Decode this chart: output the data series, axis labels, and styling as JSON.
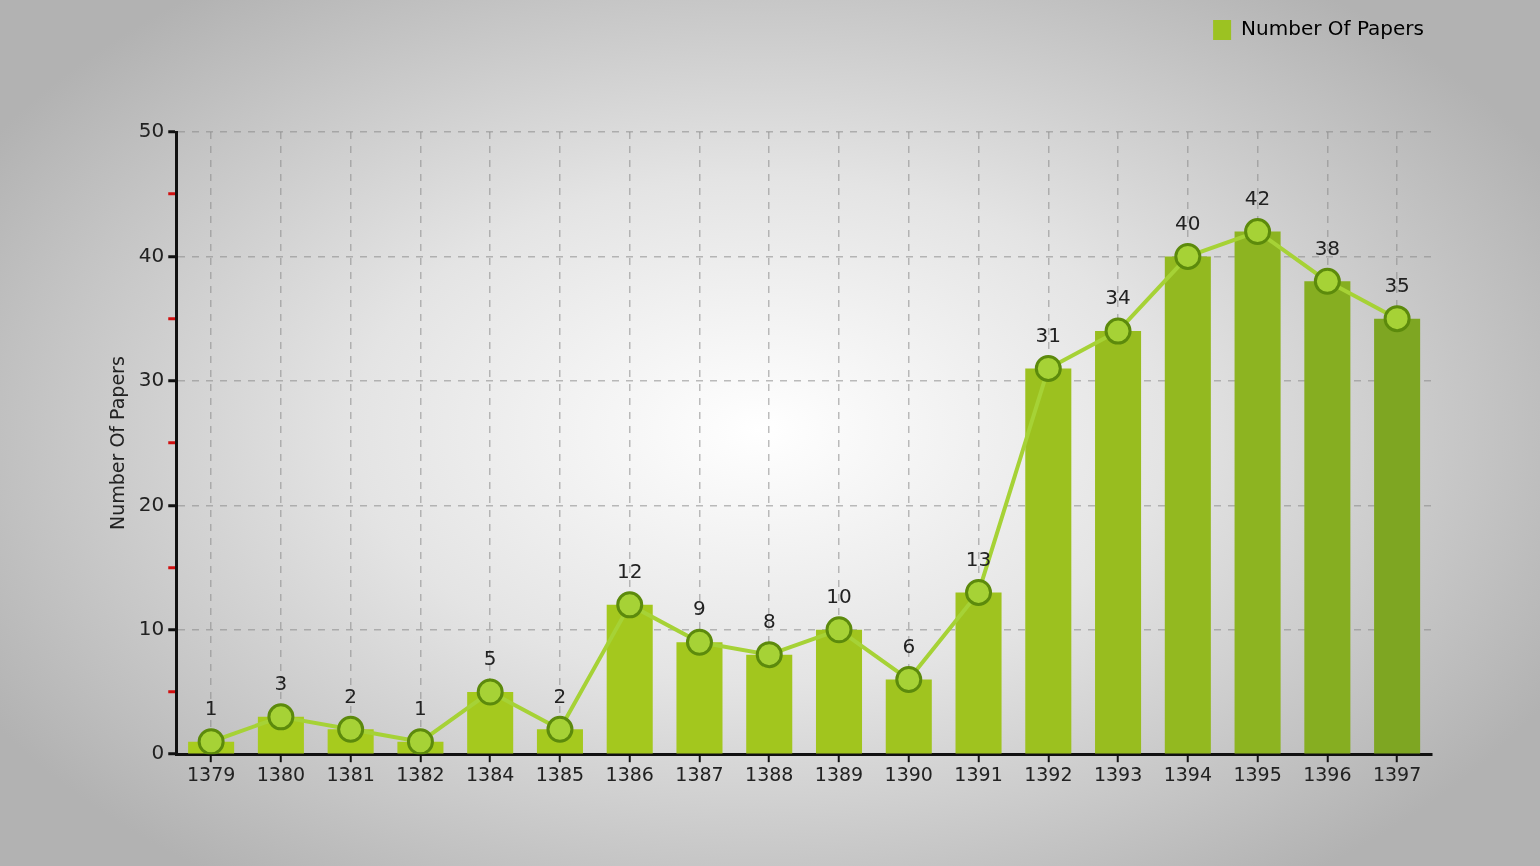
{
  "chart_data": {
    "type": "bar",
    "ylabel": "Number Of Papers",
    "categories": [
      "1379",
      "1380",
      "1381",
      "1382",
      "1384",
      "1385",
      "1386",
      "1387",
      "1388",
      "1389",
      "1390",
      "1391",
      "1392",
      "1393",
      "1394",
      "1395",
      "1396",
      "1397"
    ],
    "series": [
      {
        "name": "Number Of Papers",
        "color": "#9cc222",
        "colors": [
          "#a8cc1e",
          "#a7cb1e",
          "#a7cb1e",
          "#a6ca1e",
          "#a5c91e",
          "#a5c91e",
          "#a4c81e",
          "#a3c71e",
          "#a2c61e",
          "#a1c51e",
          "#a0c41f",
          "#9fc31f",
          "#9cc11f",
          "#98bd1f",
          "#93b920",
          "#8db421",
          "#86ae21",
          "#7ea622"
        ],
        "values": [
          1,
          3,
          2,
          1,
          5,
          2,
          12,
          9,
          8,
          10,
          6,
          13,
          31,
          34,
          40,
          42,
          38,
          35
        ]
      },
      {
        "type": "line",
        "color": "#a6d236",
        "marker": "circle",
        "values": [
          1,
          3,
          2,
          1,
          5,
          2,
          12,
          9,
          8,
          10,
          6,
          13,
          31,
          34,
          40,
          42,
          38,
          35
        ],
        "value_labels": [
          "1",
          "3",
          "2",
          "1",
          "5",
          "2",
          "12",
          "9",
          "8",
          "10",
          "6",
          "13",
          "31",
          "34",
          "40",
          "42",
          "38",
          "35"
        ]
      }
    ],
    "ylim": [
      0,
      50
    ],
    "yticks": [
      0,
      {
        "value": 5,
        "label": null
      },
      10,
      {
        "value": 15,
        "label": null
      },
      20,
      {
        "value": 25,
        "label": null
      },
      30,
      {
        "value": 35,
        "label": null
      },
      40,
      {
        "value": 45,
        "label": null
      },
      50
    ],
    "grid": true,
    "legend": "top right"
  }
}
